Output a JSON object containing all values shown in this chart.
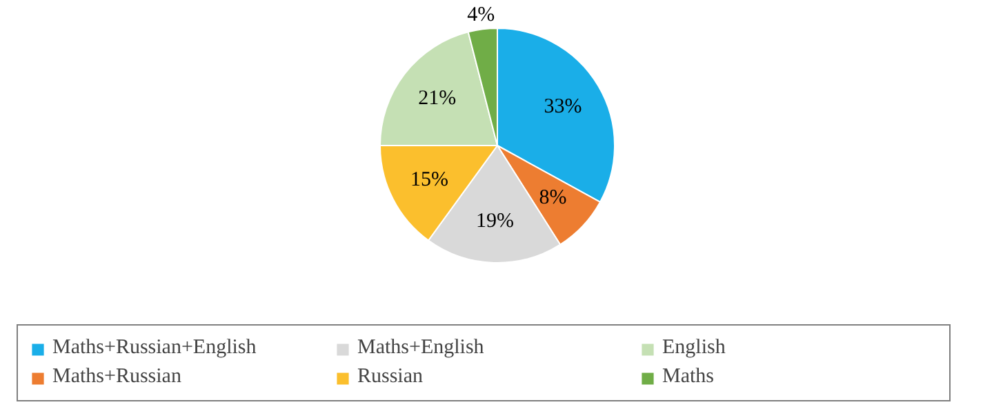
{
  "chart_data": {
    "type": "pie",
    "categories": [
      "Maths+Russian+English",
      "Maths+Russian",
      "Maths+English",
      "Russian",
      "English",
      "Maths"
    ],
    "values": [
      33,
      8,
      19,
      15,
      21,
      4
    ],
    "colors": [
      "#1aaee8",
      "#ed7d31",
      "#d9d9d9",
      "#fbbf2d",
      "#c5e0b4",
      "#70ad47"
    ],
    "value_labels": [
      "33%",
      "8%",
      "19%",
      "15%",
      "21%",
      "4%"
    ],
    "legend": "bottom"
  }
}
